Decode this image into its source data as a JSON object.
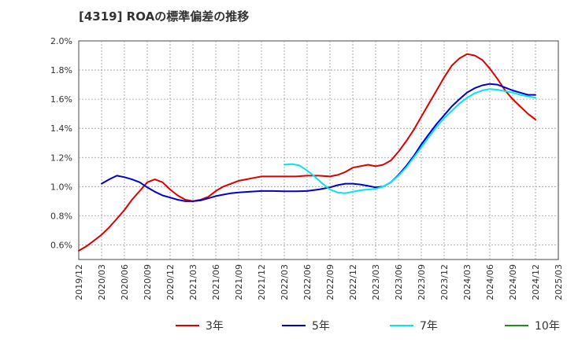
{
  "chart_data": {
    "type": "line",
    "title": "[4319]  ROAの標準偏差の推移",
    "xlabel": "",
    "ylabel": "",
    "x_ticks": [
      "2019/12",
      "2020/03",
      "2020/06",
      "2020/09",
      "2020/12",
      "2021/03",
      "2021/06",
      "2021/09",
      "2021/12",
      "2022/03",
      "2022/06",
      "2022/09",
      "2022/12",
      "2023/03",
      "2023/06",
      "2023/09",
      "2023/12",
      "2024/03",
      "2024/06",
      "2024/09",
      "2024/12",
      "2025/03"
    ],
    "y_ticks": [
      "0.6%",
      "0.8%",
      "1.0%",
      "1.2%",
      "1.4%",
      "1.6%",
      "1.8%",
      "2.0%"
    ],
    "y_tick_values": [
      0.6,
      0.8,
      1.0,
      1.2,
      1.4,
      1.6,
      1.8,
      2.0
    ],
    "ylim": [
      0.5,
      2.0
    ],
    "xlim": [
      0,
      21
    ],
    "grid": true,
    "legend_position": "bottom",
    "series": [
      {
        "name": "3年",
        "color": "#dd0000",
        "points": [
          [
            0,
            0.56
          ],
          [
            0.33,
            0.59
          ],
          [
            0.67,
            0.63
          ],
          [
            1,
            0.67
          ],
          [
            1.33,
            0.72
          ],
          [
            1.67,
            0.78
          ],
          [
            2,
            0.84
          ],
          [
            2.33,
            0.91
          ],
          [
            2.67,
            0.97
          ],
          [
            3,
            1.03
          ],
          [
            3.33,
            1.05
          ],
          [
            3.67,
            1.03
          ],
          [
            4,
            0.98
          ],
          [
            4.33,
            0.94
          ],
          [
            4.67,
            0.91
          ],
          [
            5,
            0.9
          ],
          [
            5.33,
            0.91
          ],
          [
            5.67,
            0.93
          ],
          [
            6,
            0.97
          ],
          [
            6.33,
            1.0
          ],
          [
            6.67,
            1.02
          ],
          [
            7,
            1.04
          ],
          [
            7.33,
            1.05
          ],
          [
            7.67,
            1.06
          ],
          [
            8,
            1.07
          ],
          [
            8.5,
            1.07
          ],
          [
            9,
            1.07
          ],
          [
            9.5,
            1.07
          ],
          [
            10,
            1.075
          ],
          [
            10.5,
            1.075
          ],
          [
            11,
            1.07
          ],
          [
            11.33,
            1.08
          ],
          [
            11.67,
            1.1
          ],
          [
            12,
            1.13
          ],
          [
            12.33,
            1.14
          ],
          [
            12.67,
            1.15
          ],
          [
            13,
            1.14
          ],
          [
            13.33,
            1.15
          ],
          [
            13.67,
            1.18
          ],
          [
            14,
            1.24
          ],
          [
            14.33,
            1.31
          ],
          [
            14.67,
            1.39
          ],
          [
            15,
            1.48
          ],
          [
            15.33,
            1.57
          ],
          [
            15.67,
            1.66
          ],
          [
            16,
            1.75
          ],
          [
            16.33,
            1.83
          ],
          [
            16.67,
            1.88
          ],
          [
            17,
            1.91
          ],
          [
            17.33,
            1.9
          ],
          [
            17.67,
            1.87
          ],
          [
            18,
            1.81
          ],
          [
            18.33,
            1.74
          ],
          [
            18.67,
            1.66
          ],
          [
            19,
            1.6
          ],
          [
            19.33,
            1.55
          ],
          [
            19.67,
            1.5
          ],
          [
            20,
            1.46
          ]
        ]
      },
      {
        "name": "5年",
        "color": "#0000cc",
        "points": [
          [
            1,
            1.02
          ],
          [
            1.33,
            1.05
          ],
          [
            1.67,
            1.075
          ],
          [
            2,
            1.065
          ],
          [
            2.33,
            1.05
          ],
          [
            2.67,
            1.03
          ],
          [
            3,
            0.995
          ],
          [
            3.33,
            0.965
          ],
          [
            3.67,
            0.94
          ],
          [
            4,
            0.925
          ],
          [
            4.33,
            0.91
          ],
          [
            4.67,
            0.9
          ],
          [
            5,
            0.9
          ],
          [
            5.33,
            0.905
          ],
          [
            5.67,
            0.92
          ],
          [
            6,
            0.935
          ],
          [
            6.33,
            0.945
          ],
          [
            6.67,
            0.955
          ],
          [
            7,
            0.96
          ],
          [
            7.5,
            0.965
          ],
          [
            8,
            0.97
          ],
          [
            8.5,
            0.97
          ],
          [
            9,
            0.968
          ],
          [
            9.5,
            0.968
          ],
          [
            10,
            0.97
          ],
          [
            10.5,
            0.98
          ],
          [
            11,
            0.995
          ],
          [
            11.33,
            1.01
          ],
          [
            11.67,
            1.02
          ],
          [
            12,
            1.02
          ],
          [
            12.33,
            1.015
          ],
          [
            12.67,
            1.005
          ],
          [
            13,
            0.995
          ],
          [
            13.33,
            1.0
          ],
          [
            13.67,
            1.03
          ],
          [
            14,
            1.08
          ],
          [
            14.33,
            1.14
          ],
          [
            14.67,
            1.21
          ],
          [
            15,
            1.29
          ],
          [
            15.33,
            1.36
          ],
          [
            15.67,
            1.43
          ],
          [
            16,
            1.49
          ],
          [
            16.33,
            1.55
          ],
          [
            16.67,
            1.6
          ],
          [
            17,
            1.645
          ],
          [
            17.33,
            1.675
          ],
          [
            17.67,
            1.695
          ],
          [
            18,
            1.705
          ],
          [
            18.33,
            1.7
          ],
          [
            18.67,
            1.68
          ],
          [
            19,
            1.66
          ],
          [
            19.33,
            1.645
          ],
          [
            19.67,
            1.63
          ],
          [
            20,
            1.63
          ]
        ]
      },
      {
        "name": "7年",
        "color": "#00e5ee",
        "points": [
          [
            9,
            1.15
          ],
          [
            9.33,
            1.155
          ],
          [
            9.67,
            1.145
          ],
          [
            10,
            1.11
          ],
          [
            10.33,
            1.07
          ],
          [
            10.67,
            1.02
          ],
          [
            11,
            0.98
          ],
          [
            11.33,
            0.96
          ],
          [
            11.67,
            0.955
          ],
          [
            12,
            0.965
          ],
          [
            12.33,
            0.975
          ],
          [
            12.67,
            0.98
          ],
          [
            13,
            0.985
          ],
          [
            13.33,
            1.0
          ],
          [
            13.67,
            1.03
          ],
          [
            14,
            1.075
          ],
          [
            14.33,
            1.13
          ],
          [
            14.67,
            1.2
          ],
          [
            15,
            1.27
          ],
          [
            15.33,
            1.34
          ],
          [
            15.67,
            1.41
          ],
          [
            16,
            1.47
          ],
          [
            16.33,
            1.52
          ],
          [
            16.67,
            1.57
          ],
          [
            17,
            1.61
          ],
          [
            17.33,
            1.64
          ],
          [
            17.67,
            1.66
          ],
          [
            18,
            1.67
          ],
          [
            18.33,
            1.665
          ],
          [
            18.67,
            1.655
          ],
          [
            19,
            1.645
          ],
          [
            19.33,
            1.63
          ],
          [
            19.67,
            1.62
          ],
          [
            20,
            1.61
          ]
        ]
      },
      {
        "name": "10年",
        "color": "#228b22",
        "points": []
      }
    ]
  }
}
